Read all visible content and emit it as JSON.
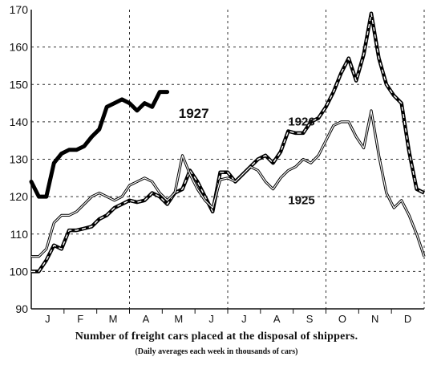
{
  "chart_data": {
    "type": "line",
    "title": "Number of freight cars placed at the disposal of shippers.",
    "subtitle": "(Daily averages each week in thousands of cars)",
    "xlabel": "",
    "ylabel": "",
    "categories": [
      "J",
      "F",
      "M",
      "A",
      "M",
      "J",
      "J",
      "A",
      "S",
      "O",
      "N",
      "D"
    ],
    "ylim": [
      90,
      170
    ],
    "yticks": [
      90,
      100,
      110,
      120,
      130,
      140,
      150,
      160,
      170
    ],
    "x_unit": "week of year",
    "xlim": [
      0,
      52
    ],
    "grid": "dashed",
    "legend": "inline labels",
    "series": [
      {
        "name": "1927",
        "style": "thick-solid",
        "x": [
          0,
          1,
          2,
          3,
          4,
          5,
          6,
          7,
          8,
          9,
          10,
          11,
          12,
          13,
          14,
          15,
          16,
          17,
          18
        ],
        "values": [
          124,
          120,
          120,
          129,
          131.5,
          132.5,
          132.5,
          133.5,
          136,
          138,
          144,
          145,
          146,
          145,
          143,
          145,
          144,
          148,
          148
        ]
      },
      {
        "name": "1926",
        "style": "dashed-double",
        "x": [
          0,
          1,
          2,
          3,
          4,
          5,
          6,
          7,
          8,
          9,
          10,
          11,
          12,
          13,
          14,
          15,
          16,
          17,
          18,
          19,
          20,
          21,
          22,
          23,
          24,
          25,
          26,
          27,
          28,
          29,
          30,
          31,
          32,
          33,
          34,
          35,
          36,
          37,
          38,
          39,
          40,
          41,
          42,
          43,
          44,
          45,
          46,
          47,
          48,
          49,
          50,
          51,
          52
        ],
        "values": [
          100,
          100,
          103,
          107,
          106,
          111,
          111,
          111.5,
          112,
          114,
          115,
          117,
          118,
          119,
          118.5,
          119,
          121,
          120,
          118,
          121,
          122,
          127,
          124,
          120,
          116,
          126.5,
          126.5,
          124,
          126,
          128,
          130,
          131,
          129,
          132,
          137.5,
          137,
          137,
          140,
          141,
          144,
          148,
          153,
          157,
          151,
          158,
          169,
          157,
          150,
          147,
          145,
          132,
          122,
          121
        ]
      },
      {
        "name": "1925",
        "style": "thin-double",
        "x": [
          0,
          1,
          2,
          3,
          4,
          5,
          6,
          7,
          8,
          9,
          10,
          11,
          12,
          13,
          14,
          15,
          16,
          17,
          18,
          19,
          20,
          21,
          22,
          23,
          24,
          25,
          26,
          27,
          28,
          29,
          30,
          31,
          32,
          33,
          34,
          35,
          36,
          37,
          38,
          39,
          40,
          41,
          42,
          43,
          44,
          45,
          46,
          47,
          48,
          49,
          50,
          51,
          52
        ],
        "values": [
          104,
          104,
          106,
          113,
          115,
          115,
          116,
          118,
          120,
          121,
          120,
          119,
          120,
          123,
          124,
          125,
          124,
          121,
          119,
          121,
          131,
          126,
          122,
          119,
          117,
          124.5,
          125,
          124,
          126,
          128,
          127,
          124,
          122,
          125,
          127,
          128,
          130,
          129,
          131,
          135,
          139,
          140,
          140,
          136,
          133,
          143,
          131,
          121,
          117,
          119,
          115,
          110,
          104
        ]
      }
    ],
    "annotations": [
      {
        "text": "1927",
        "x": 19.5,
        "y": 141
      },
      {
        "text": "1926",
        "x": 34,
        "y": 139
      },
      {
        "text": "1925",
        "x": 34,
        "y": 118
      }
    ]
  }
}
